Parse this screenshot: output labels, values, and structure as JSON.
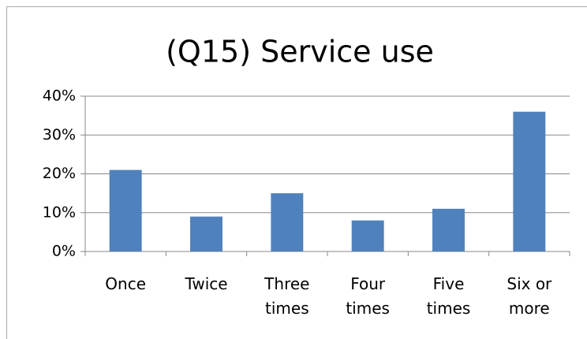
{
  "chart_data": {
    "type": "bar",
    "title": "(Q15) Service use",
    "categories": [
      "Once",
      "Twice",
      "Three times",
      "Four times",
      "Five times",
      "Six or more"
    ],
    "values": [
      21,
      9,
      15,
      8,
      11,
      36
    ],
    "color": "#4f81bd",
    "ylim": [
      0,
      40
    ],
    "yticks": [
      {
        "value": 0,
        "label": "0%"
      },
      {
        "value": 10,
        "label": "10%"
      },
      {
        "value": 20,
        "label": "20%"
      },
      {
        "value": 30,
        "label": "30%"
      },
      {
        "value": 40,
        "label": "40%"
      }
    ],
    "grid": true
  }
}
